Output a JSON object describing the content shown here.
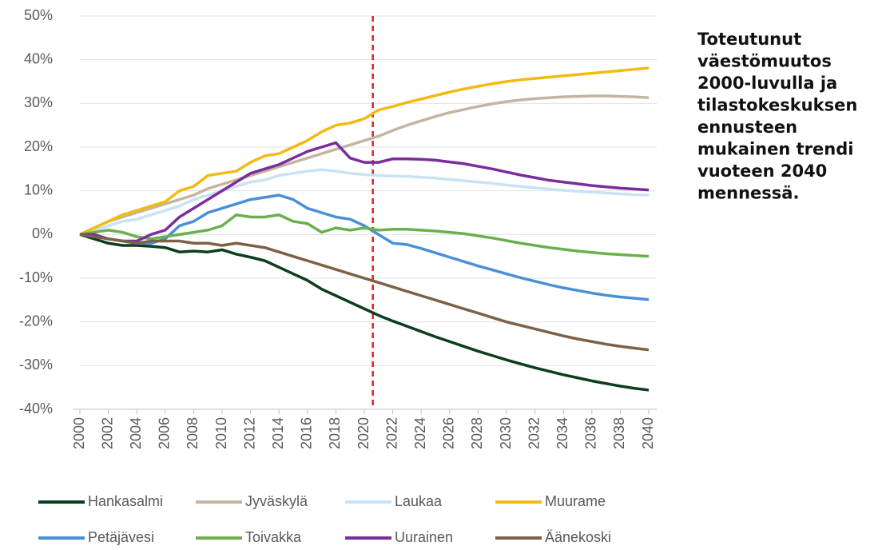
{
  "chart_data": {
    "type": "line",
    "annotation_lines": [
      "Toteutunut",
      "väestömuutos",
      "2000-luvulla ja",
      "tilastokeskuksen",
      "ennusteen",
      "mukainen trendi",
      "vuoteen 2040",
      "mennessä."
    ],
    "x": [
      2000,
      2001,
      2002,
      2003,
      2004,
      2005,
      2006,
      2007,
      2008,
      2009,
      2010,
      2011,
      2012,
      2013,
      2014,
      2015,
      2016,
      2017,
      2018,
      2019,
      2020,
      2021,
      2022,
      2023,
      2024,
      2025,
      2026,
      2027,
      2028,
      2029,
      2030,
      2031,
      2032,
      2033,
      2034,
      2035,
      2036,
      2037,
      2038,
      2039,
      2040
    ],
    "xlim": [
      2000,
      2040
    ],
    "xticks": [
      2000,
      2002,
      2004,
      2006,
      2008,
      2010,
      2012,
      2014,
      2016,
      2018,
      2020,
      2022,
      2024,
      2026,
      2028,
      2030,
      2032,
      2034,
      2036,
      2038,
      2040
    ],
    "ylim": [
      -40,
      50
    ],
    "yticks": [
      {
        "value": -40,
        "label": "-40%"
      },
      {
        "value": -30,
        "label": "-30%"
      },
      {
        "value": -20,
        "label": "-20%"
      },
      {
        "value": -10,
        "label": "-10%"
      },
      {
        "value": 0,
        "label": "0%"
      },
      {
        "value": 10,
        "label": "10%"
      },
      {
        "value": 20,
        "label": "20%"
      },
      {
        "value": 30,
        "label": "30%"
      },
      {
        "value": 40,
        "label": "40%"
      },
      {
        "value": 50,
        "label": "50%"
      }
    ],
    "grid": true,
    "forecast_line": {
      "x": 2020.6,
      "color": "#e0202a"
    },
    "series": [
      {
        "name": "Hankasalmi",
        "color": "#0b3d1f",
        "values": [
          0,
          -1,
          -2,
          -2.5,
          -2.5,
          -2.7,
          -3,
          -4,
          -3.8,
          -4,
          -3.5,
          -4.5,
          -5.2,
          -6,
          -7.5,
          -9,
          -10.5,
          -12.5,
          -14,
          -15.5,
          -17,
          -18.5,
          -19.8,
          -21,
          -22.2,
          -23.4,
          -24.5,
          -25.6,
          -26.7,
          -27.7,
          -28.7,
          -29.6,
          -30.5,
          -31.3,
          -32.1,
          -32.8,
          -33.5,
          -34.1,
          -34.7,
          -35.2,
          -35.6
        ]
      },
      {
        "name": "Jyväskylä",
        "color": "#c4b5a0",
        "values": [
          0,
          1.5,
          3,
          4,
          5,
          6,
          7,
          8,
          9,
          10.5,
          11.5,
          12.5,
          13.5,
          14.5,
          15.5,
          16.5,
          17.5,
          18.5,
          19.5,
          20.5,
          21.5,
          22.5,
          23.8,
          25,
          26,
          27,
          27.9,
          28.6,
          29.3,
          29.9,
          30.4,
          30.8,
          31.1,
          31.3,
          31.5,
          31.6,
          31.7,
          31.7,
          31.6,
          31.5,
          31.3
        ]
      },
      {
        "name": "Laukaa",
        "color": "#c9e2f5",
        "values": [
          0,
          1,
          2,
          3,
          3.5,
          4.5,
          5.5,
          6.5,
          8,
          9,
          10,
          11,
          12,
          12.5,
          13.5,
          14,
          14.5,
          14.8,
          14.5,
          14,
          13.7,
          13.5,
          13.4,
          13.3,
          13.1,
          12.9,
          12.6,
          12.3,
          12,
          11.7,
          11.3,
          11,
          10.7,
          10.4,
          10.1,
          9.9,
          9.7,
          9.5,
          9.3,
          9.1,
          9
        ]
      },
      {
        "name": "Muurame",
        "color": "#f2bb12",
        "values": [
          0,
          1.5,
          3,
          4.5,
          5.5,
          6.5,
          7.5,
          10,
          11,
          13.5,
          14,
          14.5,
          16.5,
          18,
          18.5,
          20,
          21.5,
          23.5,
          25,
          25.5,
          26.5,
          28.5,
          29.3,
          30.2,
          31,
          31.8,
          32.6,
          33.3,
          33.9,
          34.5,
          35,
          35.4,
          35.7,
          36,
          36.3,
          36.6,
          36.9,
          37.2,
          37.5,
          37.8,
          38.1
        ]
      },
      {
        "name": "Petäjävesi",
        "color": "#4a90d9",
        "values": [
          0,
          -0.5,
          -1,
          -1.5,
          -2,
          -2,
          -1,
          2,
          3,
          5,
          6,
          7,
          8,
          8.5,
          9,
          8,
          6,
          5,
          4,
          3.5,
          2,
          0,
          -2,
          -2.3,
          -3.2,
          -4.2,
          -5.2,
          -6.2,
          -7.2,
          -8.1,
          -9,
          -9.9,
          -10.7,
          -11.5,
          -12.2,
          -12.8,
          -13.4,
          -13.9,
          -14.3,
          -14.6,
          -14.9
        ]
      },
      {
        "name": "Toivakka",
        "color": "#6ab04c",
        "values": [
          0,
          0.5,
          1,
          0.5,
          -0.5,
          -1,
          -0.5,
          0,
          0.5,
          1,
          2,
          4.5,
          4,
          4,
          4.5,
          3,
          2.5,
          0.5,
          1.5,
          1,
          1.5,
          1,
          1.2,
          1.2,
          1,
          0.8,
          0.5,
          0.2,
          -0.3,
          -0.8,
          -1.4,
          -2,
          -2.5,
          -3,
          -3.4,
          -3.8,
          -4.1,
          -4.4,
          -4.6,
          -4.8,
          -5
        ]
      },
      {
        "name": "Uurainen",
        "color": "#7b2d9e",
        "values": [
          0,
          0,
          -1,
          -1.5,
          -1.5,
          0,
          1,
          4,
          6,
          8,
          10,
          12,
          14,
          15,
          16,
          17.5,
          19,
          20,
          21,
          17.5,
          16.5,
          16.5,
          17.3,
          17.3,
          17.2,
          17,
          16.6,
          16.2,
          15.6,
          15,
          14.3,
          13.6,
          13,
          12.4,
          12,
          11.6,
          11.2,
          10.9,
          10.6,
          10.4,
          10.2
        ]
      },
      {
        "name": "Äänekoski",
        "color": "#7d6147",
        "values": [
          0,
          -0.5,
          -1,
          -1.5,
          -2,
          -1.5,
          -1.5,
          -1.5,
          -2,
          -2,
          -2.5,
          -2,
          -2.5,
          -3,
          -4,
          -5,
          -6,
          -7,
          -8,
          -9,
          -10,
          -11,
          -12,
          -13,
          -14,
          -15,
          -16,
          -17,
          -18,
          -19,
          -20,
          -20.8,
          -21.6,
          -22.4,
          -23.2,
          -23.9,
          -24.5,
          -25.1,
          -25.6,
          -26,
          -26.4
        ]
      }
    ]
  }
}
